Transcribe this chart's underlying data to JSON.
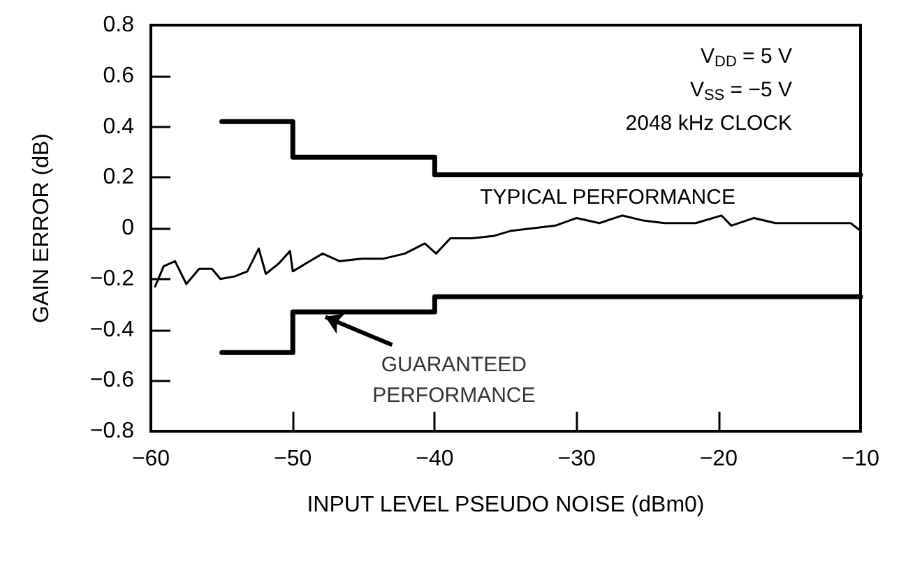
{
  "chart_data": {
    "type": "line",
    "xlabel": "INPUT LEVEL PSEUDO NOISE (dBm0)",
    "ylabel": "GAIN ERROR (dB)",
    "xlim": [
      -60,
      -10
    ],
    "xticks": [
      {
        "value": -60,
        "label": "−60"
      },
      {
        "value": -50,
        "label": "−50"
      },
      {
        "value": -40,
        "label": "−40"
      },
      {
        "value": -30,
        "label": "−30"
      },
      {
        "value": -20,
        "label": "−20"
      },
      {
        "value": -10,
        "label": "−10"
      }
    ],
    "ylim": [
      -0.8,
      0.8
    ],
    "yticks": [
      {
        "value": -0.8,
        "label": "−0.8"
      },
      {
        "value": -0.6,
        "label": "−0.6"
      },
      {
        "value": -0.4,
        "label": "−0.4"
      },
      {
        "value": -0.2,
        "label": "−0.2"
      },
      0,
      0.2,
      0.4,
      0.6,
      0.8
    ],
    "grid": false,
    "marker": "none",
    "series": [
      {
        "color": "#000000",
        "x": [
          -59.7,
          -59.1,
          -58.3,
          -57.5,
          -56.6,
          -55.7,
          -55.1,
          -54.1,
          -53.2,
          -52.4,
          -51.9,
          -51.0,
          -50.2,
          -50.0,
          -48.8,
          -47.9,
          -46.7,
          -45.1,
          -43.6,
          -42.1,
          -40.7,
          -39.9,
          -38.9,
          -37.4,
          -35.8,
          -34.6,
          -31.5,
          -30.0,
          -28.4,
          -26.8,
          -25.3,
          -23.8,
          -21.6,
          -19.8,
          -19.1,
          -17.5,
          -16.0,
          -14.2,
          -12.3,
          -10.7,
          -10.0
        ],
        "values": [
          -0.23,
          -0.15,
          -0.13,
          -0.22,
          -0.16,
          -0.16,
          -0.2,
          -0.19,
          -0.17,
          -0.08,
          -0.18,
          -0.14,
          -0.09,
          -0.17,
          -0.13,
          -0.1,
          -0.13,
          -0.12,
          -0.12,
          -0.1,
          -0.06,
          -0.1,
          -0.04,
          -0.04,
          -0.03,
          -0.01,
          0.01,
          0.04,
          0.02,
          0.05,
          0.03,
          0.02,
          0.02,
          0.05,
          0.01,
          0.04,
          0.02,
          0.02,
          0.02,
          0.02,
          -0.01
        ]
      },
      {
        "type": "step",
        "color": "#000000",
        "x": [
          -55,
          -50,
          -40,
          -10
        ],
        "values": [
          0.42,
          0.28,
          0.21,
          0.21
        ]
      },
      {
        "type": "step",
        "color": "#000000",
        "x": [
          -55,
          -50,
          -40,
          -10
        ],
        "values": [
          -0.49,
          -0.33,
          -0.27,
          -0.27
        ]
      }
    ],
    "annotations": [
      "V$_{DD}$ = 5 V",
      "V$_{SS}$ = −5 V",
      "2048 kHz CLOCK",
      "TYPICAL PERFORMANCE",
      {
        "text": "GUARANTEED PERFORMANCE",
        "x": -48,
        "y": -0.34
      }
    ]
  }
}
